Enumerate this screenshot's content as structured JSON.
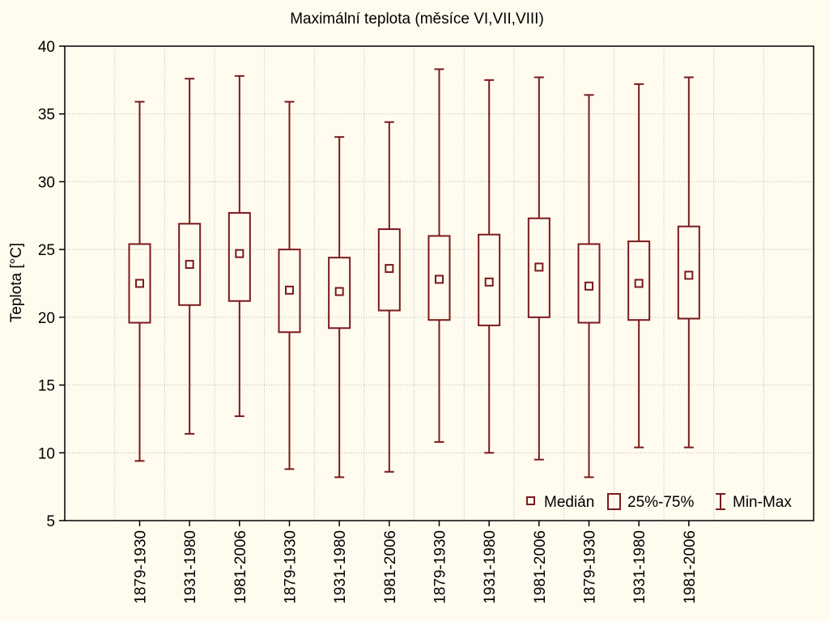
{
  "chart_data": {
    "type": "boxplot",
    "title": "Maximální teplota (měsíce VI,VII,VIII)",
    "xlabel": "",
    "ylabel": "Teplota [°C]",
    "ylim": [
      5,
      40
    ],
    "yticks": [
      "5",
      "10",
      "15",
      "20",
      "25",
      "30",
      "35",
      "40"
    ],
    "grid": true,
    "legend_position": "bottom-right",
    "categories": [
      "1879-1930",
      "1931-1980",
      "1981-2006",
      "1879-1930",
      "1931-1980",
      "1981-2006",
      "1879-1930",
      "1931-1980",
      "1981-2006",
      "1879-1930",
      "1931-1980",
      "1981-2006"
    ],
    "series": [
      {
        "min": [
          9.4,
          11.4,
          12.7,
          8.8,
          8.2,
          8.6,
          10.8,
          10.0,
          9.5,
          8.2,
          10.4,
          10.4
        ],
        "q1": [
          19.6,
          20.9,
          21.2,
          18.9,
          19.2,
          20.5,
          19.8,
          19.4,
          20.0,
          19.6,
          19.8,
          19.9
        ],
        "median": [
          22.5,
          23.9,
          24.7,
          22.0,
          21.9,
          23.6,
          22.8,
          22.6,
          23.7,
          22.3,
          22.5,
          23.1
        ],
        "q3": [
          25.4,
          26.9,
          27.7,
          25.0,
          24.4,
          26.5,
          26.0,
          26.1,
          27.3,
          25.4,
          25.6,
          26.7
        ],
        "max": [
          35.9,
          37.6,
          37.8,
          35.9,
          33.3,
          34.4,
          38.3,
          37.5,
          37.7,
          36.4,
          37.2,
          37.7
        ]
      }
    ],
    "legend": [
      {
        "symbol": "median",
        "label": "Medián"
      },
      {
        "symbol": "box",
        "label": "25%-75%"
      },
      {
        "symbol": "whisker",
        "label": "Min-Max"
      }
    ],
    "color": "#7b1a1a",
    "grid_color": "#b8b8b8",
    "background": "#fffbef"
  }
}
